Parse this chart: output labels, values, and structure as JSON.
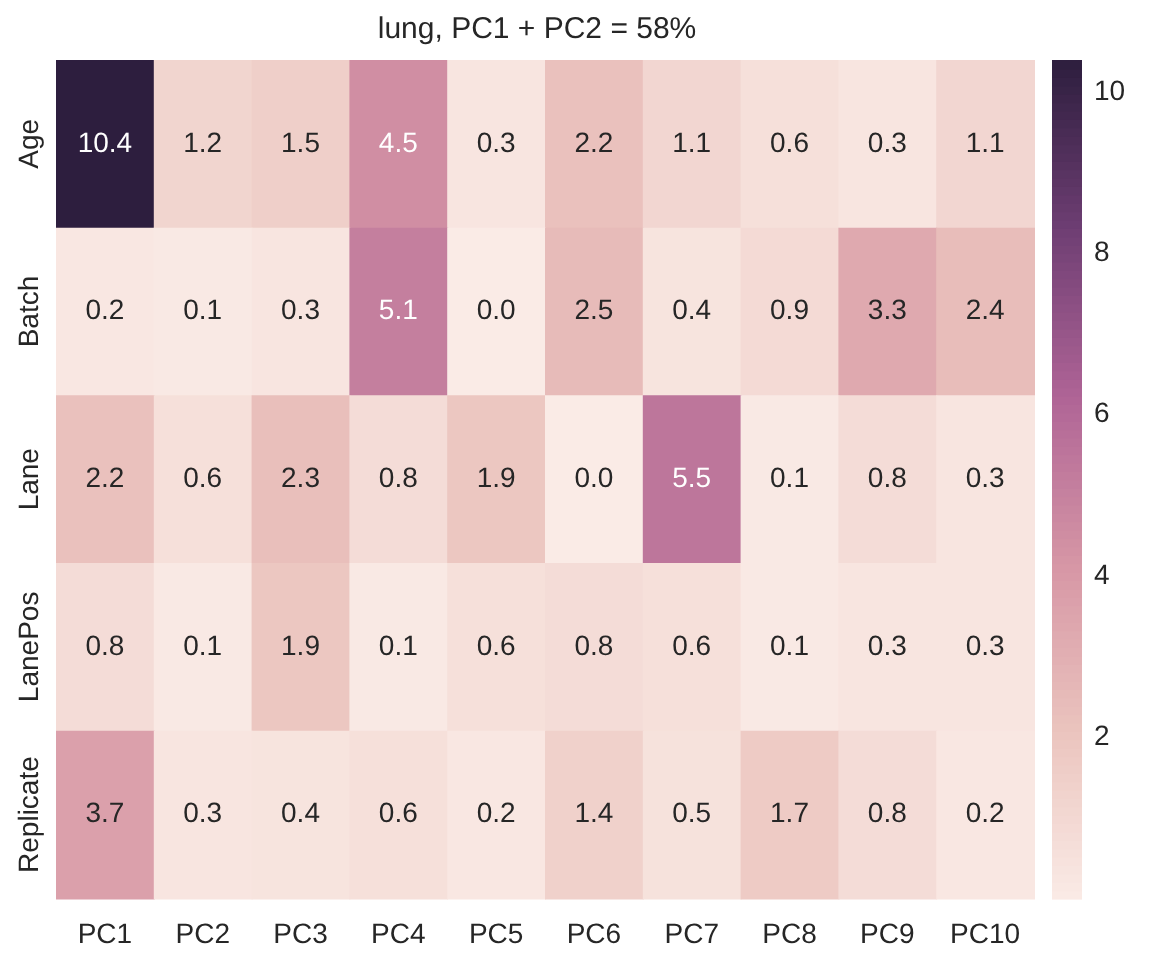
{
  "chart_data": {
    "type": "heatmap",
    "title": "lung, PC1 + PC2 = 58%",
    "categories": [
      "PC1",
      "PC2",
      "PC3",
      "PC4",
      "PC5",
      "PC6",
      "PC7",
      "PC8",
      "PC9",
      "PC10"
    ],
    "y_categories": [
      "Age",
      "Batch",
      "Lane",
      "LanePos",
      "Replicate"
    ],
    "cells": [
      [
        10.4,
        1.2,
        1.5,
        4.5,
        0.3,
        2.2,
        1.1,
        0.6,
        0.3,
        1.1
      ],
      [
        0.2,
        0.1,
        0.3,
        5.1,
        0.0,
        2.5,
        0.4,
        0.9,
        3.3,
        2.4
      ],
      [
        2.2,
        0.6,
        2.3,
        0.8,
        1.9,
        0.0,
        5.5,
        0.1,
        0.8,
        0.3
      ],
      [
        0.8,
        0.1,
        1.9,
        0.1,
        0.6,
        0.8,
        0.6,
        0.1,
        0.3,
        0.3
      ],
      [
        3.7,
        0.3,
        0.4,
        0.6,
        0.2,
        1.4,
        0.5,
        1.7,
        0.8,
        0.2
      ]
    ],
    "cell_labels": [
      [
        "10.4",
        "1.2",
        "1.5",
        "4.5",
        "0.3",
        "2.2",
        "1.1",
        "0.6",
        "0.3",
        "1.1"
      ],
      [
        "0.2",
        "0.1",
        "0.3",
        "5.1",
        "0.0",
        "2.5",
        "0.4",
        "0.9",
        "3.3",
        "2.4"
      ],
      [
        "2.2",
        "0.6",
        "2.3",
        "0.8",
        "1.9",
        "0.0",
        "5.5",
        "0.1",
        "0.8",
        "0.3"
      ],
      [
        "0.8",
        "0.1",
        "1.9",
        "0.1",
        "0.6",
        "0.8",
        "0.6",
        "0.1",
        "0.3",
        "0.3"
      ],
      [
        "3.7",
        "0.3",
        "0.4",
        "0.6",
        "0.2",
        "1.4",
        "0.5",
        "1.7",
        "0.8",
        "0.2"
      ]
    ],
    "clim": [
      0,
      10.4
    ],
    "cticks": [
      2,
      4,
      6,
      8,
      10
    ]
  }
}
